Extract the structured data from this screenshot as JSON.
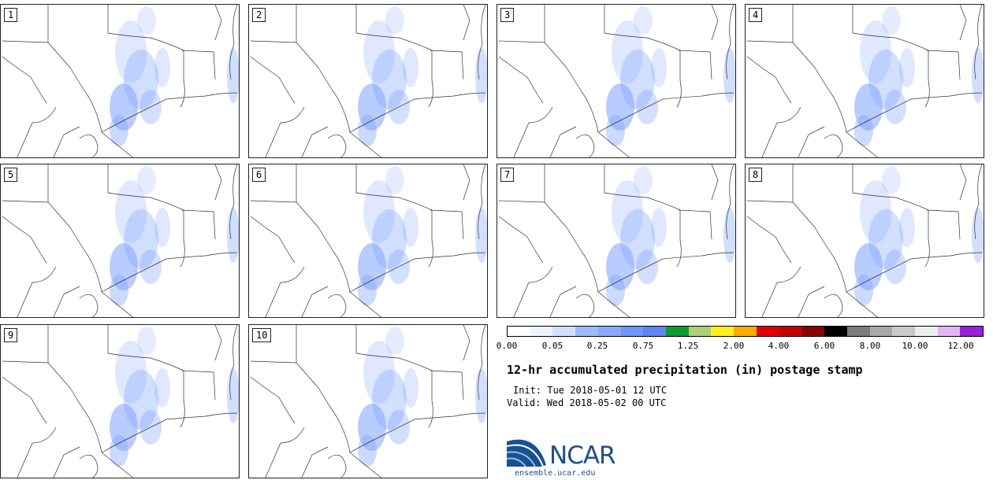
{
  "panels": [
    {
      "label": "1"
    },
    {
      "label": "2"
    },
    {
      "label": "3"
    },
    {
      "label": "4"
    },
    {
      "label": "5"
    },
    {
      "label": "6"
    },
    {
      "label": "7"
    },
    {
      "label": "8"
    },
    {
      "label": "9"
    },
    {
      "label": "10"
    }
  ],
  "colorbar": {
    "colors": [
      "#ffffff",
      "#eef4ff",
      "#cfe0ff",
      "#9cbcff",
      "#86a9ff",
      "#7095ff",
      "#5f84f2",
      "#0c9a32",
      "#acd072",
      "#fff21b",
      "#ffab00",
      "#e30000",
      "#c40000",
      "#8b0000",
      "#000000",
      "#7b7b7b",
      "#a8a8a8",
      "#c9c9c9",
      "#ededed",
      "#e4b3f3",
      "#9a21d8"
    ],
    "tick_labels": [
      "0.00",
      "0.05",
      "0.25",
      "0.75",
      "1.25",
      "2.00",
      "4.00",
      "6.00",
      "8.00",
      "10.00",
      "12.00"
    ]
  },
  "title": "12-hr accumulated precipitation (in) postage stamp",
  "init": "Init: Tue 2018-05-01 12 UTC",
  "valid": "Valid: Wed 2018-05-02 00 UTC",
  "logo": {
    "text": "NCAR",
    "site": "ensemble.ucar.edu",
    "brand_color": "#1f4e8c"
  }
}
